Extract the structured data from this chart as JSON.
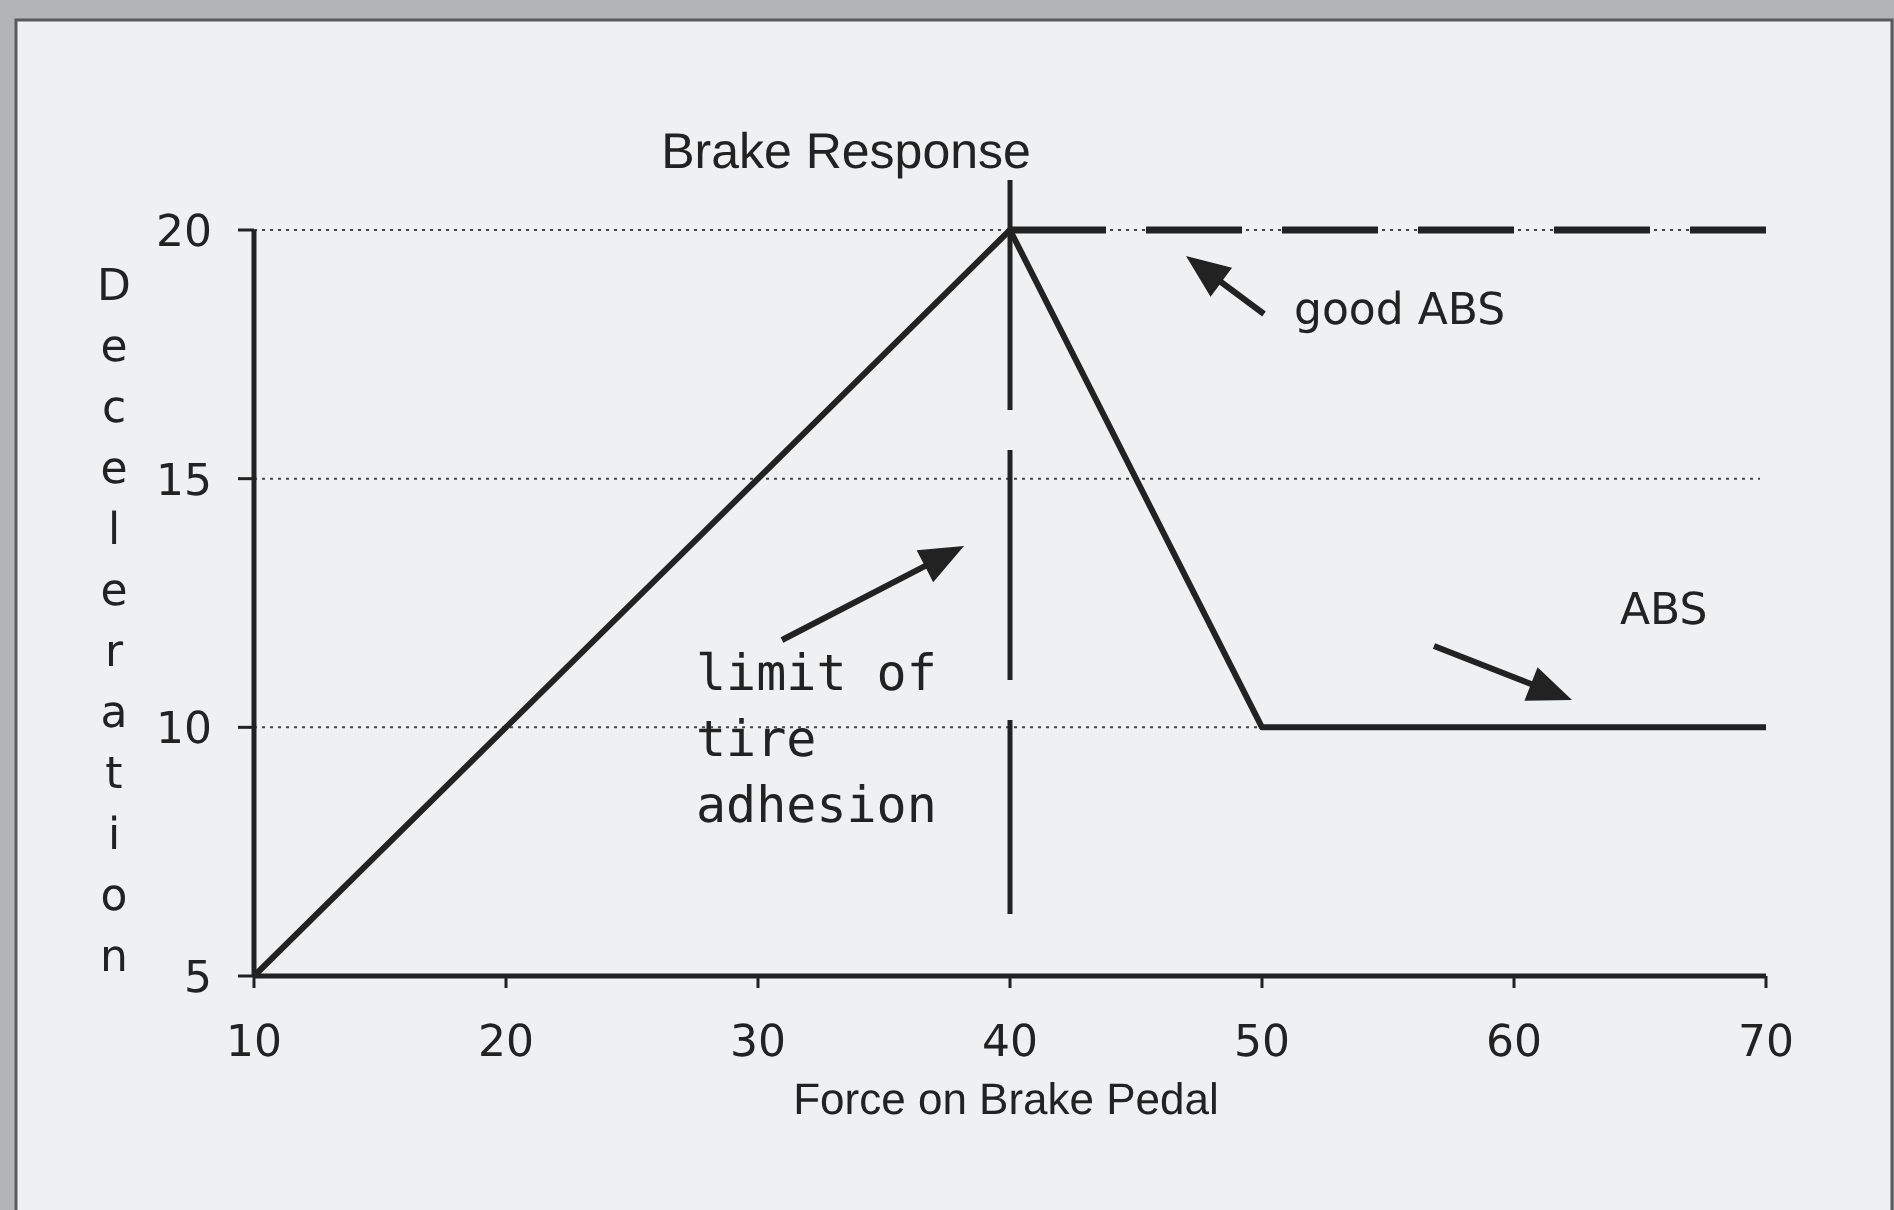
{
  "chart_data": {
    "type": "line",
    "title": "Brake Response",
    "xlabel": "Force on Brake Pedal",
    "ylabel": "Deceleration",
    "xlim": [
      10,
      70
    ],
    "ylim": [
      5,
      20
    ],
    "xticks": [
      10,
      20,
      30,
      40,
      50,
      60,
      70
    ],
    "yticks": [
      5,
      10,
      15,
      20
    ],
    "grid": "y",
    "series": [
      {
        "name": "ABS",
        "color": "#222222",
        "x": [
          10,
          40,
          50,
          70
        ],
        "values": [
          5,
          20,
          10,
          10
        ]
      },
      {
        "name": "good ABS",
        "color": "#222222",
        "x": [
          40,
          70
        ],
        "values": [
          20,
          20
        ],
        "line_style": "dashed"
      }
    ],
    "ref_lines": [
      {
        "axis": "x",
        "value": 40,
        "label": "limit of tire adhesion",
        "line_style": "dashed",
        "color": "#222222"
      }
    ]
  }
}
